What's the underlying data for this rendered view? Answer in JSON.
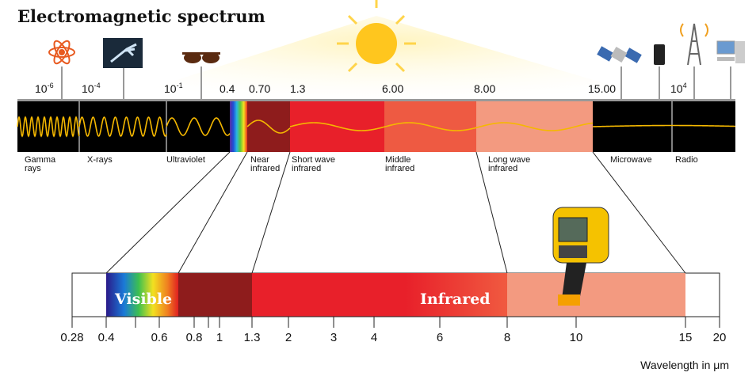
{
  "title": "Electromagnetic spectrum",
  "top_scale": [
    {
      "base": "10",
      "exp": "-6"
    },
    {
      "base": "10",
      "exp": "-4"
    },
    {
      "base": "10",
      "exp": "-1"
    },
    "0.4",
    "0.70",
    "1.3",
    "6.00",
    "8.00",
    "15.00",
    {
      "base": "10",
      "exp": "4"
    }
  ],
  "bands": [
    "Gamma rays",
    "X-rays",
    "Ultraviolet",
    "Near infrared",
    "Short wave infrared",
    "Middle infrared",
    "Long wave infrared",
    "Microwave",
    "Radio"
  ],
  "zoom": {
    "visible": "Visible",
    "infrared": "Infrared",
    "ticks": [
      "0.28",
      "0.4",
      "0.6",
      "0.8",
      "1",
      "1.3",
      "2",
      "3",
      "4",
      "6",
      "8",
      "10",
      "15",
      "20"
    ],
    "axis_label": "Wavelength in μm"
  }
}
